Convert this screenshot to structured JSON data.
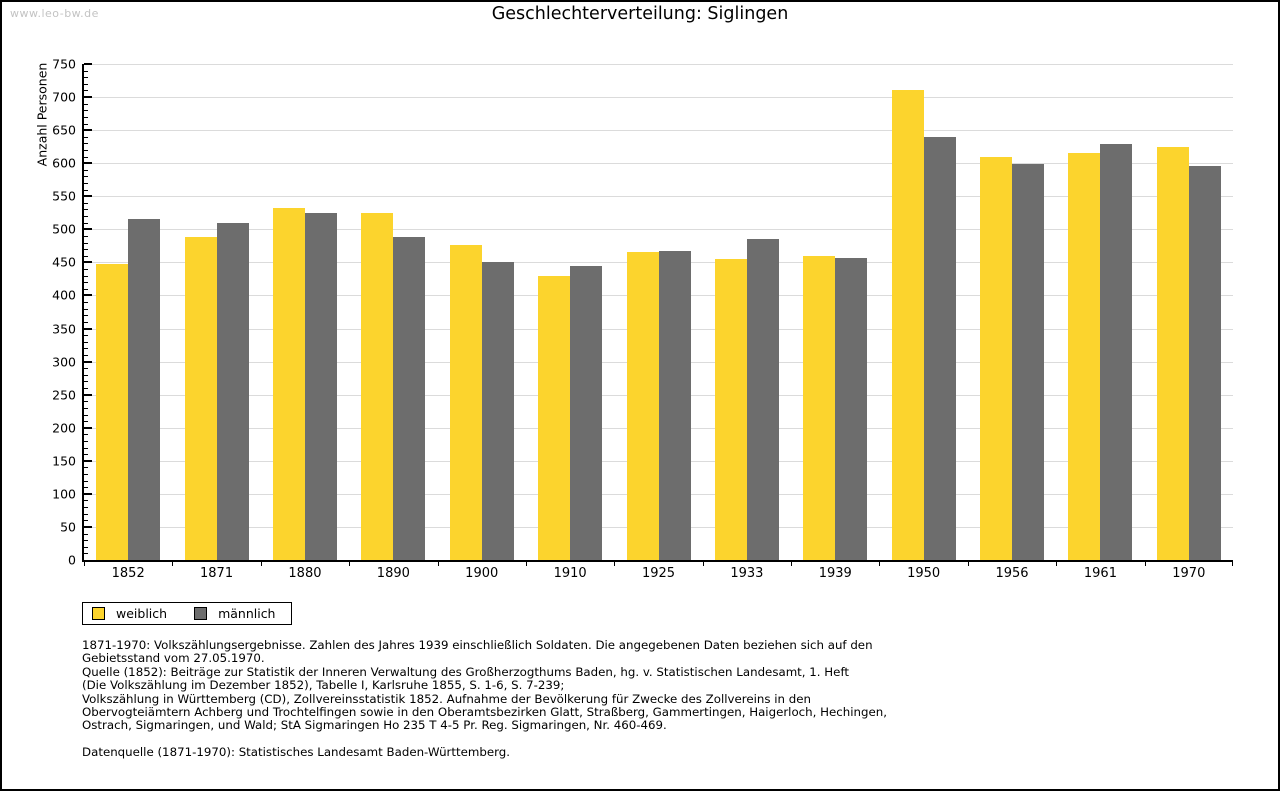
{
  "watermark": "www.leo-bw.de",
  "title": "Geschlechterverteilung: Siglingen",
  "chart_data": {
    "type": "bar",
    "title": "Geschlechterverteilung: Siglingen",
    "xlabel": "",
    "ylabel": "Anzahl Personen",
    "ylim": [
      0,
      750
    ],
    "ytick_step": 50,
    "y_minor_step": 10,
    "grid": true,
    "legend_position": "bottom-left",
    "categories": [
      "1852",
      "1871",
      "1880",
      "1890",
      "1900",
      "1910",
      "1925",
      "1933",
      "1939",
      "1950",
      "1956",
      "1961",
      "1970"
    ],
    "series": [
      {
        "name": "weiblich",
        "color": "#FCD42D",
        "values": [
          448,
          489,
          533,
          524,
          476,
          429,
          465,
          455,
          460,
          711,
          610,
          616,
          624
        ]
      },
      {
        "name": "männlich",
        "color": "#6D6D6D",
        "values": [
          516,
          510,
          525,
          489,
          450,
          444,
          468,
          486,
          457,
          640,
          599,
          629,
          596
        ]
      }
    ]
  },
  "colors": {
    "female": "#FCD42D",
    "male": "#6D6D6D",
    "gridline": "#DBDBDB",
    "axis": "#000000",
    "watermark": "#C3C3C3"
  },
  "footnotes": {
    "lines": [
      "1871-1970: Volkszählungsergebnisse. Zahlen des Jahres 1939 einschließlich Soldaten. Die angegebenen Daten beziehen sich auf den",
      "Gebietsstand vom 27.05.1970.",
      "Quelle (1852): Beiträge zur Statistik der Inneren Verwaltung des Großherzogthums Baden, hg. v. Statistischen Landesamt, 1. Heft",
      "(Die Volkszählung im Dezember 1852), Tabelle I, Karlsruhe 1855, S. 1-6, S. 7-239;",
      "Volkszählung in Württemberg (CD), Zollvereinsstatistik 1852. Aufnahme der Bevölkerung für Zwecke des Zollvereins in den",
      "Obervogteiämtern Achberg und Trochtelfingen sowie in den Oberamtsbezirken Glatt, Straßberg, Gammertingen, Haigerloch, Hechingen,",
      "Ostrach, Sigmaringen, und Wald; StA Sigmaringen Ho 235 T 4-5 Pr. Reg. Sigmaringen, Nr. 460-469."
    ],
    "datasource": "Datenquelle (1871-1970): Statistisches Landesamt Baden-Württemberg."
  }
}
